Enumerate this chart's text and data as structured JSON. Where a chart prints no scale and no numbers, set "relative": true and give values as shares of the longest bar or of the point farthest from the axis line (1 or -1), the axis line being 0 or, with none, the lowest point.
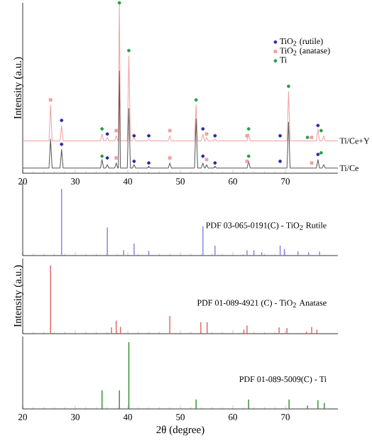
{
  "chart_data": [
    {
      "type": "line",
      "relative": true,
      "ylabel": "Intensity (a.u.)",
      "xlim": [
        20,
        80
      ],
      "xticks": [
        20,
        30,
        40,
        50,
        60,
        70
      ],
      "tick_labels": "x",
      "legend": "top right",
      "series": [
        {
          "name": "Ti/Ce+Y",
          "color": "#f0a0a0",
          "x": [
            20,
            25.0,
            25.3,
            25.6,
            27.1,
            27.4,
            27.7,
            34.8,
            35.1,
            35.4,
            35.8,
            36.1,
            36.4,
            37.5,
            37.8,
            38.1,
            38.2,
            38.4,
            38.6,
            39.9,
            40.2,
            40.5,
            40.9,
            41.2,
            41.5,
            43.7,
            44.0,
            44.3,
            47.7,
            48.0,
            48.3,
            52.7,
            53.0,
            53.3,
            54.0,
            54.3,
            54.6,
            54.7,
            55.0,
            55.3,
            56.3,
            56.6,
            56.9,
            62.7,
            63.0,
            63.3,
            70.3,
            70.6,
            70.9,
            75.9,
            76.2,
            76.5,
            77.0,
            77.3,
            77.6,
            80
          ],
          "values": [
            0.19,
            0.19,
            0.4,
            0.19,
            0.19,
            0.28,
            0.19,
            0.19,
            0.23,
            0.19,
            0.19,
            0.21,
            0.19,
            0.19,
            0.22,
            0.19,
            0.19,
            1.0,
            0.19,
            0.19,
            0.69,
            0.19,
            0.19,
            0.21,
            0.19,
            0.19,
            0.2,
            0.19,
            0.19,
            0.22,
            0.19,
            0.19,
            0.4,
            0.19,
            0.19,
            0.23,
            0.19,
            0.19,
            0.21,
            0.19,
            0.19,
            0.2,
            0.19,
            0.19,
            0.23,
            0.19,
            0.19,
            0.48,
            0.19,
            0.19,
            0.26,
            0.19,
            0.19,
            0.22,
            0.19,
            0.19
          ]
        },
        {
          "name": "Ti/Ce",
          "color": "#555555",
          "x": [
            20,
            25.0,
            25.3,
            25.6,
            27.1,
            27.4,
            27.7,
            34.8,
            35.1,
            35.4,
            35.8,
            36.1,
            36.4,
            37.5,
            37.8,
            38.1,
            38.2,
            38.4,
            38.6,
            39.9,
            40.2,
            40.5,
            40.9,
            41.2,
            41.5,
            43.7,
            44.0,
            44.3,
            47.7,
            48.0,
            48.3,
            52.7,
            53.0,
            53.3,
            54.0,
            54.3,
            54.6,
            54.7,
            55.0,
            55.3,
            56.3,
            56.6,
            56.9,
            62.7,
            63.0,
            63.3,
            70.3,
            70.6,
            70.9,
            75.9,
            76.2,
            76.5,
            77.0,
            77.3,
            77.6,
            80
          ],
          "values": [
            0.03,
            0.03,
            0.2,
            0.03,
            0.03,
            0.14,
            0.03,
            0.03,
            0.08,
            0.03,
            0.03,
            0.05,
            0.03,
            0.03,
            0.06,
            0.03,
            0.03,
            0.6,
            0.03,
            0.03,
            0.38,
            0.03,
            0.03,
            0.05,
            0.03,
            0.03,
            0.04,
            0.03,
            0.03,
            0.06,
            0.03,
            0.03,
            0.32,
            0.03,
            0.03,
            0.06,
            0.03,
            0.03,
            0.05,
            0.03,
            0.03,
            0.04,
            0.03,
            0.03,
            0.07,
            0.03,
            0.03,
            0.3,
            0.03,
            0.03,
            0.08,
            0.03,
            0.03,
            0.05,
            0.03,
            0.03
          ]
        },
        {
          "name": "TiO$_{2}$ (rutile)",
          "type": "scatter",
          "marker": "circle",
          "color": "#2a2a9a",
          "x": [
            27.4,
            36.1,
            41.2,
            44.0,
            54.3,
            56.6,
            69.0,
            76.2,
            27.4,
            36.1,
            41.2,
            44.0,
            54.3,
            56.6,
            69.0,
            76.2
          ],
          "values": [
            0.31,
            0.23,
            0.22,
            0.22,
            0.26,
            0.22,
            0.22,
            0.28,
            0.17,
            0.09,
            0.07,
            0.06,
            0.1,
            0.06,
            0.07,
            0.11
          ]
        },
        {
          "name": "TiO$_{2}$ (anatase)",
          "type": "scatter",
          "marker": "square",
          "color": "#f0a0a0",
          "x": [
            25.3,
            37.8,
            48.0,
            55.0,
            62.7,
            75.0,
            37.8,
            48.0,
            55.0,
            62.7,
            75.0
          ],
          "values": [
            0.43,
            0.25,
            0.25,
            0.23,
            0.22,
            0.21,
            0.09,
            0.09,
            0.08,
            0.07,
            0.06
          ]
        },
        {
          "name": "Ti",
          "type": "scatter",
          "marker": "circle",
          "color": "#20a040",
          "x": [
            35.1,
            38.4,
            40.2,
            53.0,
            63.0,
            70.6,
            74.2,
            76.8,
            35.1,
            63.0,
            76.8
          ],
          "values": [
            0.26,
            1.0,
            0.72,
            0.43,
            0.26,
            0.51,
            0.21,
            0.25,
            0.1,
            0.1,
            0.12
          ]
        }
      ]
    },
    {
      "type": "bar",
      "relative": true,
      "xlim": [
        20,
        80
      ],
      "xticks": [
        20,
        30,
        40,
        50,
        60,
        70
      ],
      "tick_labels": false,
      "annotations": [
        "PDF 03-065-0191(C) - TiO$_{2}$ Rutile"
      ],
      "series": [
        {
          "color": "#8080e0",
          "x": [
            27.4,
            36.1,
            39.2,
            41.2,
            44.0,
            54.3,
            56.6,
            62.7,
            64.0,
            65.5,
            69.0,
            69.8,
            72.4,
            74.4,
            76.5
          ],
          "values": [
            1.0,
            0.42,
            0.08,
            0.18,
            0.07,
            0.44,
            0.15,
            0.08,
            0.08,
            0.05,
            0.15,
            0.1,
            0.06,
            0.05,
            0.06
          ]
        }
      ]
    },
    {
      "type": "bar",
      "relative": true,
      "ylabel": "Intensity (a.u.)",
      "xlim": [
        20,
        80
      ],
      "xticks": [
        20,
        30,
        40,
        50,
        60,
        70
      ],
      "tick_labels": false,
      "annotations": [
        "PDF 01-089-4921 (C) - TiO$_{2}$ Anatase"
      ],
      "series": [
        {
          "color": "#e06060",
          "x": [
            25.3,
            36.9,
            37.8,
            38.6,
            48.0,
            53.9,
            55.1,
            62.1,
            62.7,
            68.8,
            70.3,
            74.0,
            75.0,
            76.0
          ],
          "values": [
            1.0,
            0.09,
            0.19,
            0.1,
            0.26,
            0.17,
            0.17,
            0.06,
            0.12,
            0.09,
            0.08,
            0.03,
            0.1,
            0.06
          ]
        }
      ]
    },
    {
      "type": "bar",
      "relative": true,
      "xlabel": "2θ (degree)",
      "xlim": [
        20,
        80
      ],
      "xticks": [
        20,
        30,
        40,
        50,
        60,
        70
      ],
      "tick_labels": "x",
      "annotations": [
        "PDF 01-089-5009(C) - Ti"
      ],
      "series": [
        {
          "color": "#2e8b2e",
          "x": [
            35.1,
            38.4,
            40.2,
            53.0,
            63.0,
            70.7,
            74.2,
            76.2,
            77.4
          ],
          "values": [
            0.28,
            0.28,
            1.0,
            0.14,
            0.14,
            0.14,
            0.05,
            0.13,
            0.09
          ]
        }
      ]
    }
  ]
}
